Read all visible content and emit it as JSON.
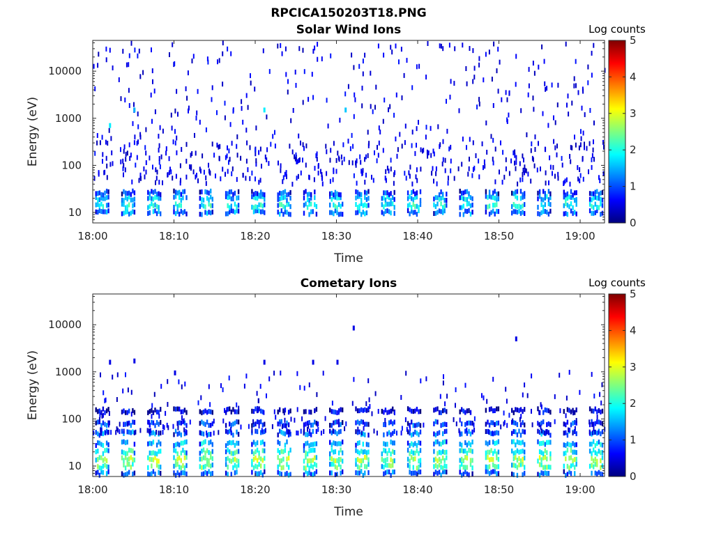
{
  "figure_title": "RPCICA150203T18.PNG",
  "colormap": [
    "#00007f",
    "#0000ff",
    "#007fff",
    "#00ffff",
    "#7fff7f",
    "#ffff00",
    "#ff7f00",
    "#ff0000",
    "#7f0000"
  ],
  "chart_data": [
    {
      "type": "heatmap",
      "title": "Solar Wind Ions",
      "xlabel": "Time",
      "ylabel": "Energy (eV)",
      "x_range": [
        "18:00",
        "19:03"
      ],
      "x_ticks": [
        "18:00",
        "18:10",
        "18:20",
        "18:30",
        "18:40",
        "18:50",
        "19:00"
      ],
      "y_scale": "log",
      "y_range": [
        6,
        45000
      ],
      "y_ticks": [
        "10",
        "100",
        "1000",
        "10000"
      ],
      "colorbar": {
        "label": "Log counts",
        "range": [
          0,
          5
        ],
        "ticks": [
          "0",
          "1",
          "2",
          "3",
          "4",
          "5"
        ]
      },
      "sweep_period_min": 3.2,
      "band_profile": [
        {
          "energy_eV": 10,
          "log_counts": 1.3
        },
        {
          "energy_eV": 14,
          "log_counts": 1.9
        },
        {
          "energy_eV": 20,
          "log_counts": 1.6
        },
        {
          "energy_eV": 26,
          "log_counts": 1.0
        }
      ],
      "scattered_counts": "sparse single counts (log counts ≈ 0–1) from 30 eV to 40000 eV, densest near 100 eV",
      "notable_points": [
        {
          "time": "18:02",
          "energy_eV": 700,
          "log_counts": 1.8
        },
        {
          "time": "18:21",
          "energy_eV": 1500,
          "log_counts": 1.8
        },
        {
          "time": "18:31",
          "energy_eV": 1500,
          "log_counts": 1.6
        },
        {
          "time": "18:05",
          "energy_eV": 1500,
          "log_counts": 1.5
        }
      ]
    },
    {
      "type": "heatmap",
      "title": "Cometary Ions",
      "xlabel": "Time",
      "ylabel": "Energy (eV)",
      "x_range": [
        "18:00",
        "19:03"
      ],
      "x_ticks": [
        "18:00",
        "18:10",
        "18:20",
        "18:30",
        "18:40",
        "18:50",
        "19:00"
      ],
      "y_scale": "log",
      "y_range": [
        6,
        45000
      ],
      "y_ticks": [
        "10",
        "100",
        "1000",
        "10000"
      ],
      "colorbar": {
        "label": "Log counts",
        "range": [
          0,
          5
        ],
        "ticks": [
          "0",
          "1",
          "2",
          "3",
          "4",
          "5"
        ]
      },
      "sweep_period_min": 3.2,
      "band_profile": [
        {
          "energy_eV": 7,
          "log_counts": 1.2
        },
        {
          "energy_eV": 10,
          "log_counts": 2.3
        },
        {
          "energy_eV": 14,
          "log_counts": 2.6
        },
        {
          "energy_eV": 20,
          "log_counts": 2.0
        },
        {
          "energy_eV": 30,
          "log_counts": 1.6
        },
        {
          "energy_eV": 50,
          "log_counts": 1.2
        },
        {
          "energy_eV": 80,
          "log_counts": 0.9
        },
        {
          "energy_eV": 150,
          "log_counts": 0.5
        }
      ],
      "scattered_counts": "few isolated counts (log counts ≈ 0.5) between 200 eV and 10000 eV",
      "notable_points": [
        {
          "time": "18:32",
          "energy_eV": 8500,
          "log_counts": 0.5
        },
        {
          "time": "18:52",
          "energy_eV": 5000,
          "log_counts": 0.5
        },
        {
          "time": "18:02",
          "energy_eV": 1600,
          "log_counts": 0.5
        },
        {
          "time": "18:05",
          "energy_eV": 1700,
          "log_counts": 0.5
        },
        {
          "time": "18:10",
          "energy_eV": 950,
          "log_counts": 0.5
        },
        {
          "time": "18:21",
          "energy_eV": 1600,
          "log_counts": 0.5
        },
        {
          "time": "18:27",
          "energy_eV": 1600,
          "log_counts": 0.5
        },
        {
          "time": "18:30",
          "energy_eV": 1600,
          "log_counts": 0.5
        }
      ]
    }
  ]
}
